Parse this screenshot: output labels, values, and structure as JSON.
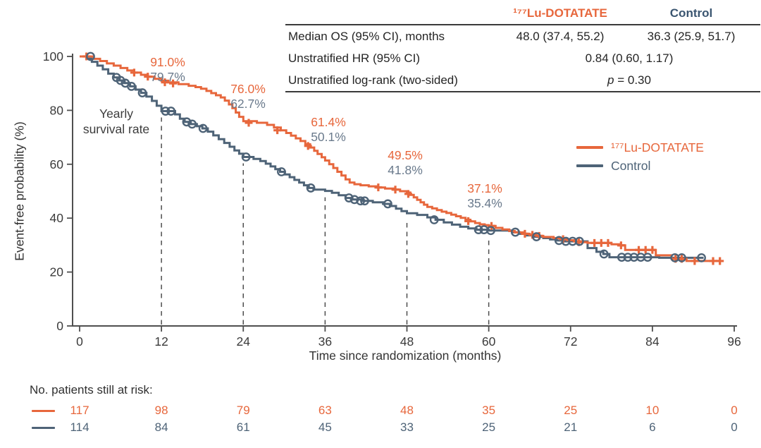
{
  "colors": {
    "lu": "#E7673C",
    "control": "#4E6377",
    "control_header": "#3A5570",
    "annotation_control": "#6A7A8C",
    "axis": "#4f4f4f",
    "guide": "#4d4d4d",
    "tick_text": "#3b3b3b"
  },
  "stats_table": {
    "col_headers": [
      "¹⁷⁷Lu-DOTATATE",
      "Control"
    ],
    "rows": [
      {
        "label": "Median OS (95% CI), months",
        "lu": "48.0 (37.4, 55.2)",
        "control": "36.3 (25.9, 51.7)"
      },
      {
        "label": "Unstratified HR (95% CI)",
        "value": "0.84 (0.60, 1.17)"
      },
      {
        "label": "Unstratified log-rank (two-sided)",
        "p": "p",
        "value": "= 0.30"
      }
    ]
  },
  "legend": {
    "items": [
      {
        "label": "¹⁷⁷Lu-DOTATATE",
        "series": "lu"
      },
      {
        "label": "Control",
        "series": "control"
      }
    ]
  },
  "chart_data": {
    "type": "line",
    "subtype": "kaplan-meier-step",
    "x_label": "Time since randomization (months)",
    "y_label": "Event-free probability (%)",
    "x_ticks": [
      0,
      12,
      24,
      36,
      48,
      60,
      72,
      84,
      96
    ],
    "y_ticks": [
      0,
      20,
      40,
      60,
      80,
      100
    ],
    "xlim": [
      0,
      96
    ],
    "ylim": [
      0,
      100
    ],
    "grid": false,
    "legend_position": "inside-right",
    "annotation_label": [
      "Yearly",
      "survival rate"
    ],
    "yearly_survival_rates": [
      {
        "month": 12,
        "lu": 91.0,
        "control": 79.7
      },
      {
        "month": 24,
        "lu": 76.0,
        "control": 62.7
      },
      {
        "month": 36,
        "lu": 61.4,
        "control": 50.1
      },
      {
        "month": 48,
        "lu": 49.5,
        "control": 41.8
      },
      {
        "month": 60,
        "lu": 37.1,
        "control": 35.4
      }
    ],
    "series": [
      {
        "name": "¹⁷⁷Lu-DOTATATE",
        "color_key": "lu",
        "marker": "plus",
        "steps": [
          [
            0,
            100
          ],
          [
            2,
            99.1
          ],
          [
            3,
            98.3
          ],
          [
            4,
            97.4
          ],
          [
            5,
            96.6
          ],
          [
            6,
            95.7
          ],
          [
            7,
            94.8
          ],
          [
            8,
            94
          ],
          [
            9,
            93.2
          ],
          [
            10,
            92.5
          ],
          [
            11,
            91.7
          ],
          [
            12,
            91
          ],
          [
            13,
            90.4
          ],
          [
            14.5,
            89.7
          ],
          [
            16,
            89.1
          ],
          [
            17,
            88.6
          ],
          [
            17.8,
            88
          ],
          [
            18.6,
            87.2
          ],
          [
            19.3,
            86.4
          ],
          [
            20,
            85.6
          ],
          [
            20.7,
            84.8
          ],
          [
            21.3,
            83.6
          ],
          [
            21.9,
            82.2
          ],
          [
            22.4,
            80.8
          ],
          [
            22.9,
            79.2
          ],
          [
            23.4,
            77.6
          ],
          [
            24,
            76
          ],
          [
            26,
            75.4
          ],
          [
            27.5,
            74.6
          ],
          [
            28.5,
            73.6
          ],
          [
            29.5,
            72.6
          ],
          [
            30.3,
            71.6
          ],
          [
            31,
            70.6
          ],
          [
            31.7,
            69.6
          ],
          [
            32.4,
            68.6
          ],
          [
            33.1,
            67.4
          ],
          [
            33.8,
            66.2
          ],
          [
            34.4,
            65
          ],
          [
            34.9,
            63.8
          ],
          [
            35.5,
            62.6
          ],
          [
            36,
            61.4
          ],
          [
            36.6,
            60
          ],
          [
            37.2,
            58.6
          ],
          [
            37.8,
            57.2
          ],
          [
            38.4,
            55.8
          ],
          [
            39,
            54.4
          ],
          [
            39.6,
            53.2
          ],
          [
            40.3,
            52.6
          ],
          [
            41.2,
            52.2
          ],
          [
            42.4,
            51.8
          ],
          [
            43.6,
            51.4
          ],
          [
            44.8,
            51
          ],
          [
            46,
            50.6
          ],
          [
            47,
            50
          ],
          [
            48,
            49.5
          ],
          [
            48.5,
            48.6
          ],
          [
            49,
            47.7
          ],
          [
            49.5,
            46.8
          ],
          [
            50,
            45.9
          ],
          [
            50.5,
            45
          ],
          [
            51,
            44.2
          ],
          [
            51.7,
            43.6
          ],
          [
            52.4,
            43
          ],
          [
            53.1,
            42.4
          ],
          [
            53.8,
            41.9
          ],
          [
            54.5,
            41.3
          ],
          [
            55.2,
            40.7
          ],
          [
            55.9,
            40.1
          ],
          [
            56.6,
            39.4
          ],
          [
            57.3,
            38.8
          ],
          [
            58,
            38.2
          ],
          [
            58.7,
            37.7
          ],
          [
            59.4,
            37.4
          ],
          [
            60,
            37.1
          ],
          [
            61,
            36.4
          ],
          [
            62,
            35.8
          ],
          [
            63,
            35.2
          ],
          [
            63.8,
            34.7
          ],
          [
            65,
            34.2
          ],
          [
            66,
            33.8
          ],
          [
            67,
            33.4
          ],
          [
            68,
            33
          ],
          [
            69.5,
            32.6
          ],
          [
            70.5,
            32.2
          ],
          [
            71.5,
            31.8
          ],
          [
            72.5,
            31.4
          ],
          [
            73.5,
            31.1
          ],
          [
            74.5,
            30.8
          ],
          [
            78,
            30.3
          ],
          [
            79.2,
            29.9
          ],
          [
            80,
            28.2
          ],
          [
            84.5,
            26.2
          ],
          [
            86.8,
            24.9
          ],
          [
            89,
            24.1
          ],
          [
            94,
            24.1
          ]
        ],
        "censor_marks": [
          [
            1,
            100
          ],
          [
            8,
            94
          ],
          [
            10,
            92.5
          ],
          [
            12.5,
            90.4
          ],
          [
            13.7,
            90
          ],
          [
            24.8,
            75.4
          ],
          [
            29,
            72.6
          ],
          [
            33.5,
            66.8
          ],
          [
            43.8,
            51.4
          ],
          [
            46.3,
            50.6
          ],
          [
            48.2,
            49
          ],
          [
            57,
            38.9
          ],
          [
            60.4,
            37.1
          ],
          [
            65.3,
            34.2
          ],
          [
            66.4,
            33.8
          ],
          [
            67.4,
            33.4
          ],
          [
            70.9,
            32.2
          ],
          [
            73.2,
            31.1
          ],
          [
            75.5,
            30.8
          ],
          [
            76.5,
            30.8
          ],
          [
            77.5,
            30.8
          ],
          [
            79.4,
            29.9
          ],
          [
            82,
            28.2
          ],
          [
            83,
            28.2
          ],
          [
            84,
            28.2
          ],
          [
            87.4,
            24.9
          ],
          [
            88.3,
            24.9
          ],
          [
            90.2,
            24.1
          ],
          [
            92.9,
            24.1
          ],
          [
            93.9,
            24.1
          ]
        ]
      },
      {
        "name": "Control",
        "color_key": "control",
        "marker": "circle",
        "steps": [
          [
            0,
            100
          ],
          [
            1,
            99.2
          ],
          [
            1.8,
            98
          ],
          [
            2.6,
            96.6
          ],
          [
            3.4,
            95.2
          ],
          [
            4.2,
            93.6
          ],
          [
            5,
            92.2
          ],
          [
            5.8,
            91.1
          ],
          [
            6.6,
            90.1
          ],
          [
            7.4,
            88.9
          ],
          [
            8.2,
            87.7
          ],
          [
            9,
            86.5
          ],
          [
            9.8,
            85.1
          ],
          [
            10.6,
            83.5
          ],
          [
            11.3,
            81.7
          ],
          [
            12,
            79.7
          ],
          [
            14,
            78.5
          ],
          [
            14.7,
            76.9
          ],
          [
            15.4,
            75.7
          ],
          [
            16.3,
            74.9
          ],
          [
            17.2,
            74.1
          ],
          [
            18,
            73.3
          ],
          [
            18.8,
            72.1
          ],
          [
            19.6,
            70.7
          ],
          [
            20.4,
            69.3
          ],
          [
            21.2,
            67.9
          ],
          [
            22,
            66.5
          ],
          [
            22.7,
            65.1
          ],
          [
            23.4,
            63.9
          ],
          [
            24,
            62.7
          ],
          [
            25.5,
            62
          ],
          [
            26.5,
            61.2
          ],
          [
            27.3,
            60.2
          ],
          [
            28,
            59.2
          ],
          [
            28.7,
            58.2
          ],
          [
            29.4,
            57.2
          ],
          [
            30.1,
            56.2
          ],
          [
            30.8,
            55.2
          ],
          [
            31.5,
            54.2
          ],
          [
            32.2,
            53.2
          ],
          [
            32.9,
            52.2
          ],
          [
            33.6,
            51.2
          ],
          [
            34.3,
            50.6
          ],
          [
            36,
            50.1
          ],
          [
            37,
            49.4
          ],
          [
            38,
            48.5
          ],
          [
            39,
            47.5
          ],
          [
            40,
            46.9
          ],
          [
            41.5,
            46.4
          ],
          [
            43,
            45.9
          ],
          [
            44.5,
            45.3
          ],
          [
            45.5,
            44.5
          ],
          [
            46.4,
            43.5
          ],
          [
            47.2,
            42.6
          ],
          [
            48,
            41.8
          ],
          [
            49.5,
            41.2
          ],
          [
            51,
            40.3
          ],
          [
            52.2,
            39.4
          ],
          [
            53.4,
            38.4
          ],
          [
            54.6,
            37.6
          ],
          [
            55.8,
            36.8
          ],
          [
            57,
            36.2
          ],
          [
            58.2,
            35.7
          ],
          [
            60,
            35.4
          ],
          [
            63.5,
            34.8
          ],
          [
            64.5,
            34.2
          ],
          [
            65.5,
            33.6
          ],
          [
            66.5,
            33.1
          ],
          [
            68,
            32.6
          ],
          [
            69,
            32.1
          ],
          [
            70,
            31.7
          ],
          [
            71,
            31.4
          ],
          [
            74.5,
            28.9
          ],
          [
            75.8,
            27.5
          ],
          [
            76.8,
            26.7
          ],
          [
            77.7,
            25.5
          ],
          [
            85,
            25.3
          ],
          [
            91.5,
            25.3
          ]
        ],
        "censor_marks": [
          [
            1.6,
            100
          ],
          [
            5.4,
            92.2
          ],
          [
            6,
            91.1
          ],
          [
            6.7,
            90.1
          ],
          [
            7.6,
            88.9
          ],
          [
            9.2,
            86.5
          ],
          [
            12.6,
            79.7
          ],
          [
            13.4,
            79.7
          ],
          [
            15.7,
            75.7
          ],
          [
            16.5,
            74.9
          ],
          [
            18.1,
            73.3
          ],
          [
            24.4,
            62.7
          ],
          [
            29.6,
            57.2
          ],
          [
            33.9,
            51.2
          ],
          [
            39.5,
            47.5
          ],
          [
            40.3,
            46.9
          ],
          [
            41.2,
            46.4
          ],
          [
            41.8,
            46.4
          ],
          [
            45.2,
            45.3
          ],
          [
            52,
            39.4
          ],
          [
            58.5,
            35.7
          ],
          [
            59.3,
            35.7
          ],
          [
            60.3,
            35.4
          ],
          [
            63.9,
            34.8
          ],
          [
            67,
            33.1
          ],
          [
            70.3,
            31.7
          ],
          [
            71.3,
            31.4
          ],
          [
            72.3,
            31.4
          ],
          [
            73.3,
            31.4
          ],
          [
            76.9,
            26.7
          ],
          [
            79.5,
            25.5
          ],
          [
            80.4,
            25.5
          ],
          [
            81.3,
            25.5
          ],
          [
            82.3,
            25.5
          ],
          [
            83.3,
            25.5
          ],
          [
            87.3,
            25.3
          ],
          [
            88.3,
            25.3
          ],
          [
            91.2,
            25.3
          ]
        ]
      }
    ],
    "risk_table": {
      "label": "No. patients still at risk:",
      "times": [
        0,
        12,
        24,
        36,
        48,
        60,
        72,
        84,
        96
      ],
      "rows": [
        {
          "name": "¹⁷⁷Lu-DOTATATE",
          "color_key": "lu",
          "counts": [
            117,
            98,
            79,
            63,
            48,
            35,
            25,
            10,
            0
          ]
        },
        {
          "name": "Control",
          "color_key": "control",
          "counts": [
            114,
            84,
            61,
            45,
            33,
            25,
            21,
            6,
            0
          ]
        }
      ]
    }
  }
}
